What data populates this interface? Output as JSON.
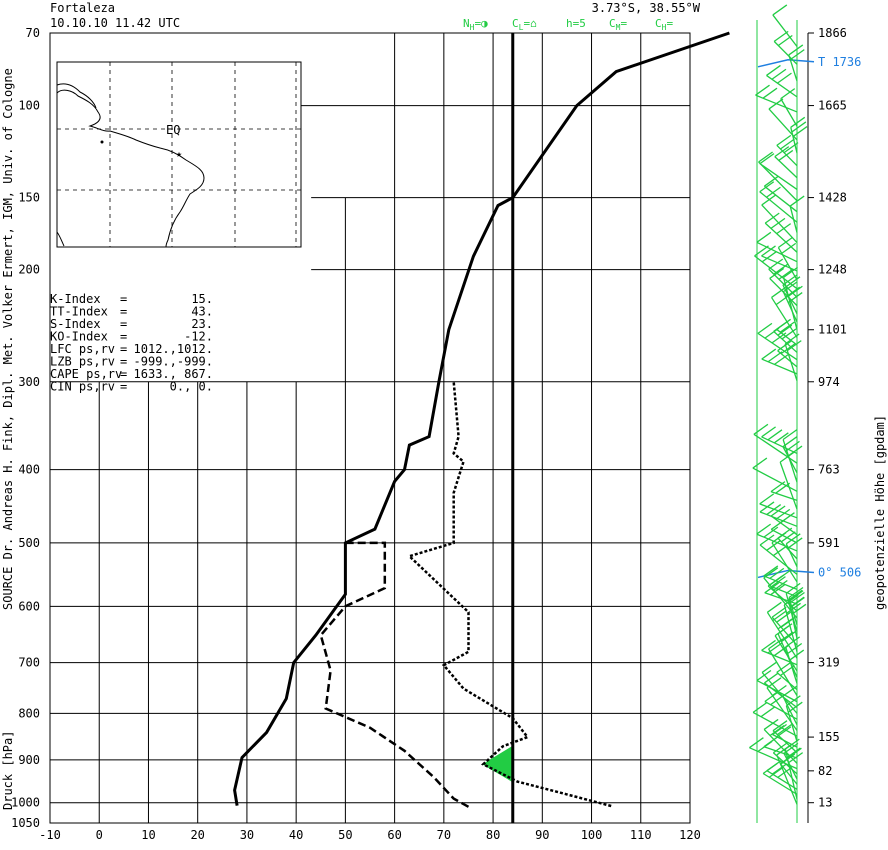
{
  "header": {
    "station": "Fortaleza",
    "datetime": "10.10.10  11.42 UTC",
    "coords": "3.73°S, 38.55°W",
    "cloud_codes": [
      "N",
      "=◑",
      "C",
      "=⌂",
      "h=5",
      "C",
      "=",
      "C",
      "="
    ],
    "cloud_subs": [
      "H",
      "L",
      "M",
      "H"
    ]
  },
  "source_label": "SOURCE Dr. Andreas H. Fink, Dipl. Met. Volker Ermert, IGM, Univ. of Cologne",
  "left_axis_label": "Druck [hPa]",
  "right_axis_label": "geopotenzielle Höhe [gpdam]",
  "map_label": "EQ",
  "indices": [
    {
      "name": "K-Index",
      "sep": "=",
      "value": "15."
    },
    {
      "name": "TT-Index",
      "sep": "=",
      "value": "43."
    },
    {
      "name": "S-Index",
      "sep": "=",
      "value": "23."
    },
    {
      "name": "KO-Index",
      "sep": "=",
      "value": "-12."
    },
    {
      "name": "LFC  ps,rv",
      "sep": "=",
      "value": "1012.,1012."
    },
    {
      "name": "LZB  ps,rv",
      "sep": "=",
      "value": "-999.,-999."
    },
    {
      "name": "CAPE ps,rv",
      "sep": "=",
      "value": "1633.,  867."
    },
    {
      "name": "CIN  ps,rv",
      "sep": "=",
      "value": "0.,    0."
    }
  ],
  "colors": {
    "profile": "#000000",
    "wind": "#22cc44",
    "levels": "#1f7fe0",
    "cape": "#22cc44"
  },
  "chart_data": {
    "type": "line",
    "xlim": [
      -10,
      120
    ],
    "ylim": [
      1050,
      70
    ],
    "x_ticks": [
      "-10",
      "0",
      "10",
      "20",
      "30",
      "40",
      "50",
      "60",
      "70",
      "80",
      "90",
      "100",
      "110",
      "120"
    ],
    "y_ticks": [
      {
        "p": 70,
        "label": "70"
      },
      {
        "p": 100,
        "label": "100"
      },
      {
        "p": 150,
        "label": "150"
      },
      {
        "p": 200,
        "label": "200"
      },
      {
        "p": 300,
        "label": "300"
      },
      {
        "p": 400,
        "label": "400"
      },
      {
        "p": 500,
        "label": "500"
      },
      {
        "p": 600,
        "label": "600"
      },
      {
        "p": 700,
        "label": "700"
      },
      {
        "p": 800,
        "label": "800"
      },
      {
        "p": 900,
        "label": "900"
      },
      {
        "p": 1000,
        "label": "1000"
      },
      {
        "p": 1050,
        "label": "1050"
      }
    ],
    "height_ticks": [
      {
        "p": 70,
        "label": "1866"
      },
      {
        "p": 100,
        "label": "1665"
      },
      {
        "p": 150,
        "label": "1428"
      },
      {
        "p": 200,
        "label": "1248"
      },
      {
        "p": 250,
        "label": "1101"
      },
      {
        "p": 300,
        "label": "974"
      },
      {
        "p": 400,
        "label": "763"
      },
      {
        "p": 500,
        "label": "591"
      },
      {
        "p": 700,
        "label": "319"
      },
      {
        "p": 850,
        "label": "155"
      },
      {
        "p": 925,
        "label": "82"
      },
      {
        "p": 1000,
        "label": "13"
      }
    ],
    "special_levels": [
      {
        "p": 81,
        "label": "T    1736"
      },
      {
        "p": 545,
        "label": "0°   506"
      }
    ],
    "temperature": [
      {
        "x": 28,
        "p": 1007
      },
      {
        "x": 27.5,
        "p": 970
      },
      {
        "x": 29,
        "p": 895
      },
      {
        "x": 34,
        "p": 840
      },
      {
        "x": 38,
        "p": 770
      },
      {
        "x": 39.5,
        "p": 700
      },
      {
        "x": 44,
        "p": 650
      },
      {
        "x": 50,
        "p": 580
      },
      {
        "x": 50,
        "p": 500
      },
      {
        "x": 56,
        "p": 480
      },
      {
        "x": 60,
        "p": 415
      },
      {
        "x": 62,
        "p": 400
      },
      {
        "x": 63,
        "p": 370
      },
      {
        "x": 67,
        "p": 360
      },
      {
        "x": 69,
        "p": 300
      },
      {
        "x": 71,
        "p": 250
      },
      {
        "x": 76,
        "p": 190
      },
      {
        "x": 81,
        "p": 155
      },
      {
        "x": 84,
        "p": 150
      },
      {
        "x": 97,
        "p": 100
      },
      {
        "x": 105,
        "p": 85
      },
      {
        "x": 128,
        "p": 70
      }
    ],
    "dewpoint": [
      {
        "x": 75,
        "p": 1010
      },
      {
        "x": 72,
        "p": 990
      },
      {
        "x": 68,
        "p": 940
      },
      {
        "x": 62,
        "p": 880
      },
      {
        "x": 55,
        "p": 830
      },
      {
        "x": 46,
        "p": 790
      },
      {
        "x": 47,
        "p": 715
      },
      {
        "x": 45,
        "p": 650
      },
      {
        "x": 50,
        "p": 600
      },
      {
        "x": 58,
        "p": 570
      },
      {
        "x": 58,
        "p": 500
      },
      {
        "x": 50,
        "p": 500
      }
    ],
    "parcel": [
      {
        "x": 104,
        "p": 1008
      },
      {
        "x": 95,
        "p": 980
      },
      {
        "x": 85,
        "p": 950
      },
      {
        "x": 78,
        "p": 910
      },
      {
        "x": 82,
        "p": 870
      },
      {
        "x": 87,
        "p": 850
      },
      {
        "x": 84,
        "p": 810
      },
      {
        "x": 74,
        "p": 750
      },
      {
        "x": 70,
        "p": 705
      },
      {
        "x": 75,
        "p": 680
      },
      {
        "x": 75,
        "p": 610
      },
      {
        "x": 63,
        "p": 520
      },
      {
        "x": 72,
        "p": 500
      },
      {
        "x": 72,
        "p": 430
      },
      {
        "x": 74,
        "p": 390
      },
      {
        "x": 72,
        "p": 380
      },
      {
        "x": 73,
        "p": 360
      },
      {
        "x": 72,
        "p": 300
      }
    ],
    "lfc_vertical": {
      "x": 84,
      "p_from": 1050,
      "p_to": 150
    },
    "cape_area": [
      {
        "x": 78,
        "p": 910
      },
      {
        "x": 84,
        "p": 870
      },
      {
        "x": 84,
        "p": 950
      }
    ]
  }
}
